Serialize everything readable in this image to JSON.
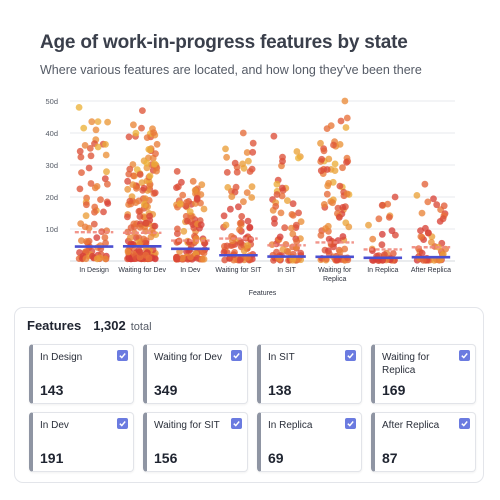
{
  "header": {
    "title": "Age of work-in-progress features by state",
    "subtitle": "Where various features are located, and how long they've been there"
  },
  "chart_data": {
    "type": "scatter",
    "title": "Age of work-in-progress features by state",
    "subtitle": "Where various features are located, and how long they've been there",
    "xlabel": "Features",
    "ylabel": "",
    "ylim": [
      0,
      50
    ],
    "yticks": [
      "10d",
      "20d",
      "30d",
      "40d",
      "50d"
    ],
    "grid": true,
    "categories": [
      "In Design",
      "Waiting for Dev",
      "In Dev",
      "Waiting for SIT",
      "In SIT",
      "Waiting for Replica",
      "In Replica",
      "After Replica"
    ],
    "counts": [
      143,
      349,
      191,
      156,
      138,
      169,
      69,
      87
    ],
    "max_age": [
      48,
      47,
      28,
      40,
      39,
      50,
      20,
      24
    ],
    "median_age": [
      4.5,
      4.6,
      3.8,
      1.8,
      1.4,
      1.3,
      1.0,
      1.2
    ],
    "mean_age": [
      9.0,
      8.8,
      6.4,
      7.0,
      4.9,
      5.8,
      3.6,
      4.3
    ],
    "colors": {
      "median_line": "#4b4fd1",
      "mean_line": "#f08a7e",
      "point_low": "#d23a3a",
      "point_high": "#ecb23a"
    }
  },
  "features": {
    "title": "Features",
    "total": "1,302",
    "total_label": "total",
    "items": [
      {
        "label": "In Design",
        "count": "143"
      },
      {
        "label": "Waiting for Dev",
        "count": "349"
      },
      {
        "label": "In SIT",
        "count": "138"
      },
      {
        "label": "Waiting for Replica",
        "count": "169"
      },
      {
        "label": "In Dev",
        "count": "191"
      },
      {
        "label": "Waiting for SIT",
        "count": "156"
      },
      {
        "label": "In Replica",
        "count": "69"
      },
      {
        "label": "After Replica",
        "count": "87"
      }
    ]
  }
}
